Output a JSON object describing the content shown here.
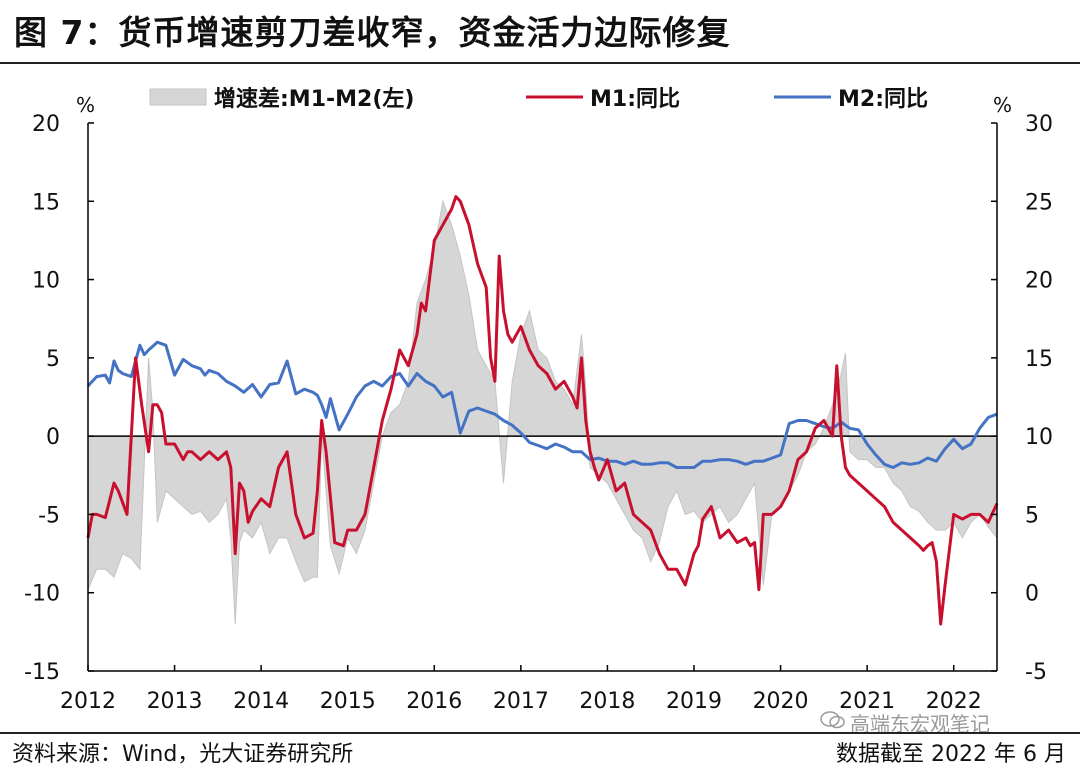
{
  "title": "图 7：货币增速剪刀差收窄，资金活力边际修复",
  "source": "资料来源：Wind，光大证券研究所",
  "note": "数据截至 2022 年 6 月",
  "watermark": "高端东宏观笔记",
  "colors": {
    "gap_fill": "#d6d6d6",
    "gap_stroke": "#c4c4c4",
    "m1": "#c8102e",
    "m2": "#4472c4",
    "axis": "#000000"
  },
  "chart_data": {
    "type": "line",
    "title": "货币增速剪刀差收窄，资金活力边际修复",
    "left_axis": {
      "unit": "%",
      "ylim": [
        -15,
        20
      ],
      "ticks": [
        20,
        15,
        10,
        5,
        0,
        -5,
        -10,
        -15
      ]
    },
    "right_axis": {
      "unit": "%",
      "ylim": [
        -5,
        30
      ],
      "ticks": [
        30,
        25,
        20,
        15,
        10,
        5,
        0,
        -5
      ]
    },
    "x_range": [
      2012.0,
      2022.5
    ],
    "x_ticks": [
      "2012",
      "2013",
      "2014",
      "2015",
      "2016",
      "2017",
      "2018",
      "2019",
      "2020",
      "2021",
      "2022"
    ],
    "legend": [
      "增速差:M1-M2(左)",
      "M1:同比",
      "M2:同比"
    ],
    "series": [
      {
        "name": "增速差:M1-M2(左)",
        "type": "area",
        "axis": "left",
        "x": [
          2012.0,
          2012.1,
          2012.2,
          2012.3,
          2012.4,
          2012.5,
          2012.6,
          2012.7,
          2012.75,
          2012.8,
          2012.9,
          2013.0,
          2013.1,
          2013.2,
          2013.3,
          2013.4,
          2013.5,
          2013.6,
          2013.65,
          2013.7,
          2013.75,
          2013.8,
          2013.9,
          2014.0,
          2014.1,
          2014.2,
          2014.3,
          2014.4,
          2014.5,
          2014.6,
          2014.65,
          2014.7,
          2014.8,
          2014.9,
          2015.0,
          2015.1,
          2015.2,
          2015.3,
          2015.4,
          2015.5,
          2015.6,
          2015.7,
          2015.8,
          2015.9,
          2016.0,
          2016.1,
          2016.2,
          2016.3,
          2016.4,
          2016.5,
          2016.6,
          2016.7,
          2016.8,
          2016.9,
          2017.0,
          2017.1,
          2017.2,
          2017.3,
          2017.4,
          2017.5,
          2017.6,
          2017.7,
          2017.75,
          2017.8,
          2017.9,
          2018.0,
          2018.1,
          2018.2,
          2018.3,
          2018.4,
          2018.5,
          2018.6,
          2018.7,
          2018.8,
          2018.9,
          2019.0,
          2019.1,
          2019.2,
          2019.3,
          2019.4,
          2019.5,
          2019.6,
          2019.7,
          2019.8,
          2019.9,
          2020.0,
          2020.1,
          2020.2,
          2020.3,
          2020.4,
          2020.5,
          2020.6,
          2020.7,
          2020.75,
          2020.8,
          2020.9,
          2021.0,
          2021.1,
          2021.2,
          2021.3,
          2021.4,
          2021.5,
          2021.6,
          2021.7,
          2021.8,
          2021.9,
          2022.0,
          2022.1,
          2022.2,
          2022.3,
          2022.4,
          2022.5
        ],
        "values": [
          -9.8,
          -8.5,
          -8.5,
          -9.0,
          -7.5,
          -7.8,
          -8.5,
          5.0,
          1.5,
          -5.5,
          -3.5,
          -4.0,
          -4.5,
          -5.0,
          -4.8,
          -5.5,
          -5.0,
          -4.0,
          -6.5,
          -12.0,
          -6.8,
          -6.0,
          -6.5,
          -5.5,
          -7.5,
          -6.5,
          -6.5,
          -8.0,
          -9.3,
          -9.0,
          -9.0,
          0.0,
          -7.0,
          -8.8,
          -6.5,
          -7.5,
          -6.0,
          -3.0,
          0.0,
          1.5,
          2.0,
          3.5,
          8.5,
          10.0,
          12.0,
          15.0,
          13.5,
          11.5,
          9.0,
          5.5,
          4.5,
          3.5,
          -3.0,
          3.5,
          6.5,
          8.0,
          5.5,
          5.0,
          3.5,
          3.0,
          2.0,
          6.5,
          3.0,
          -2.0,
          -2.5,
          -3.0,
          -4.0,
          -5.0,
          -6.0,
          -6.5,
          -8.0,
          -6.8,
          -4.5,
          -3.5,
          -5.0,
          -4.8,
          -5.5,
          -5.0,
          -4.5,
          -5.5,
          -5.0,
          -4.0,
          -3.0,
          -9.5,
          -5.0,
          -4.5,
          -3.5,
          -2.5,
          -1.0,
          -0.5,
          0.5,
          2.0,
          4.0,
          5.3,
          -1.0,
          -1.5,
          -1.5,
          -2.0,
          -2.0,
          -3.0,
          -3.5,
          -4.5,
          -4.8,
          -5.5,
          -6.0,
          -6.0,
          -5.5,
          -6.5,
          -5.5,
          -5.0,
          -5.8,
          -6.5
        ]
      },
      {
        "name": "M1:同比",
        "type": "line",
        "axis": "left",
        "x": [
          2012.0,
          2012.05,
          2012.1,
          2012.2,
          2012.3,
          2012.35,
          2012.45,
          2012.55,
          2012.62,
          2012.7,
          2012.75,
          2012.8,
          2012.85,
          2012.9,
          2013.0,
          2013.05,
          2013.1,
          2013.15,
          2013.2,
          2013.3,
          2013.4,
          2013.5,
          2013.6,
          2013.65,
          2013.7,
          2013.75,
          2013.8,
          2013.85,
          2013.9,
          2014.0,
          2014.1,
          2014.2,
          2014.3,
          2014.4,
          2014.5,
          2014.6,
          2014.65,
          2014.7,
          2014.75,
          2014.85,
          2014.95,
          2015.0,
          2015.1,
          2015.2,
          2015.3,
          2015.4,
          2015.5,
          2015.6,
          2015.7,
          2015.8,
          2015.85,
          2015.9,
          2016.0,
          2016.1,
          2016.2,
          2016.25,
          2016.3,
          2016.4,
          2016.5,
          2016.6,
          2016.65,
          2016.7,
          2016.75,
          2016.8,
          2016.85,
          2016.9,
          2017.0,
          2017.1,
          2017.2,
          2017.3,
          2017.4,
          2017.5,
          2017.6,
          2017.65,
          2017.7,
          2017.75,
          2017.8,
          2017.85,
          2017.9,
          2018.0,
          2018.1,
          2018.2,
          2018.3,
          2018.4,
          2018.5,
          2018.6,
          2018.7,
          2018.8,
          2018.9,
          2019.0,
          2019.05,
          2019.1,
          2019.2,
          2019.3,
          2019.4,
          2019.5,
          2019.6,
          2019.65,
          2019.7,
          2019.75,
          2019.8,
          2019.9,
          2020.0,
          2020.05,
          2020.1,
          2020.2,
          2020.3,
          2020.4,
          2020.5,
          2020.6,
          2020.65,
          2020.7,
          2020.75,
          2020.8,
          2020.9,
          2021.0,
          2021.1,
          2021.2,
          2021.3,
          2021.4,
          2021.5,
          2021.6,
          2021.65,
          2021.7,
          2021.75,
          2021.8,
          2021.85,
          2021.9,
          2022.0,
          2022.1,
          2022.2,
          2022.3,
          2022.4,
          2022.5
        ],
        "values": [
          -6.5,
          -5.0,
          -5.0,
          -5.2,
          -3.0,
          -3.5,
          -5.0,
          5.0,
          2.0,
          -1.0,
          2.0,
          2.0,
          1.5,
          -0.5,
          -0.5,
          -1.0,
          -1.5,
          -1.0,
          -1.0,
          -1.5,
          -1.0,
          -1.5,
          -1.0,
          -2.0,
          -7.5,
          -3.0,
          -3.5,
          -5.5,
          -4.8,
          -4.0,
          -4.5,
          -2.0,
          -1.0,
          -5.0,
          -6.5,
          -6.2,
          -3.5,
          1.0,
          -1.0,
          -6.8,
          -7.0,
          -6.0,
          -6.0,
          -5.0,
          -2.0,
          1.0,
          3.0,
          5.5,
          4.5,
          6.5,
          8.5,
          8.0,
          12.5,
          13.5,
          14.5,
          15.3,
          15.0,
          13.5,
          11.0,
          9.5,
          5.0,
          3.5,
          11.5,
          8.0,
          6.5,
          6.0,
          7.0,
          5.5,
          4.5,
          4.0,
          3.0,
          3.5,
          2.5,
          1.8,
          5.0,
          1.0,
          -1.0,
          -2.0,
          -2.8,
          -1.5,
          -3.5,
          -3.0,
          -5.0,
          -5.5,
          -6.0,
          -7.5,
          -8.5,
          -8.5,
          -9.5,
          -7.5,
          -7.0,
          -5.3,
          -4.5,
          -6.5,
          -6.0,
          -6.8,
          -6.5,
          -7.0,
          -6.8,
          -9.8,
          -5.0,
          -5.0,
          -4.5,
          -4.0,
          -3.5,
          -1.5,
          -1.0,
          0.5,
          1.0,
          0.0,
          4.5,
          0.0,
          -2.0,
          -2.5,
          -3.0,
          -3.5,
          -4.0,
          -4.5,
          -5.5,
          -6.0,
          -6.5,
          -7.0,
          -7.3,
          -7.0,
          -6.8,
          -8.0,
          -12.0,
          -9.5,
          -5.0,
          -5.3,
          -5.0,
          -5.0,
          -5.5,
          -4.3
        ]
      },
      {
        "name": "M2:同比",
        "type": "line",
        "axis": "right",
        "x": [
          2012.0,
          2012.1,
          2012.2,
          2012.25,
          2012.3,
          2012.35,
          2012.4,
          2012.5,
          2012.6,
          2012.65,
          2012.7,
          2012.8,
          2012.9,
          2013.0,
          2013.1,
          2013.2,
          2013.3,
          2013.35,
          2013.4,
          2013.5,
          2013.6,
          2013.7,
          2013.8,
          2013.9,
          2014.0,
          2014.1,
          2014.2,
          2014.3,
          2014.4,
          2014.5,
          2014.6,
          2014.65,
          2014.7,
          2014.75,
          2014.8,
          2014.9,
          2015.0,
          2015.1,
          2015.2,
          2015.3,
          2015.4,
          2015.5,
          2015.6,
          2015.7,
          2015.8,
          2015.9,
          2016.0,
          2016.1,
          2016.2,
          2016.3,
          2016.4,
          2016.5,
          2016.6,
          2016.7,
          2016.8,
          2016.9,
          2017.0,
          2017.1,
          2017.2,
          2017.3,
          2017.4,
          2017.5,
          2017.6,
          2017.7,
          2017.8,
          2017.9,
          2018.0,
          2018.1,
          2018.2,
          2018.3,
          2018.4,
          2018.5,
          2018.6,
          2018.7,
          2018.8,
          2018.9,
          2019.0,
          2019.1,
          2019.2,
          2019.3,
          2019.4,
          2019.5,
          2019.6,
          2019.7,
          2019.8,
          2019.9,
          2020.0,
          2020.1,
          2020.2,
          2020.3,
          2020.4,
          2020.5,
          2020.6,
          2020.7,
          2020.8,
          2020.9,
          2021.0,
          2021.1,
          2021.2,
          2021.3,
          2021.4,
          2021.5,
          2021.6,
          2021.7,
          2021.8,
          2021.9,
          2022.0,
          2022.1,
          2022.2,
          2022.3,
          2022.4,
          2022.5
        ],
        "values": [
          13.2,
          13.8,
          13.9,
          13.4,
          14.8,
          14.2,
          14.0,
          13.8,
          15.8,
          15.2,
          15.5,
          16.0,
          15.8,
          13.9,
          14.9,
          14.5,
          14.3,
          13.9,
          14.2,
          14.0,
          13.5,
          13.2,
          12.8,
          13.3,
          12.5,
          13.3,
          13.4,
          14.8,
          12.7,
          13.0,
          12.8,
          12.6,
          12.0,
          11.2,
          12.4,
          10.4,
          11.4,
          12.5,
          13.2,
          13.5,
          13.2,
          13.8,
          14.0,
          13.2,
          14.0,
          13.5,
          13.2,
          12.5,
          12.8,
          10.2,
          11.6,
          11.8,
          11.6,
          11.4,
          11.0,
          10.7,
          10.2,
          9.6,
          9.4,
          9.2,
          9.5,
          9.3,
          9.0,
          9.0,
          8.5,
          8.6,
          8.4,
          8.4,
          8.2,
          8.4,
          8.2,
          8.2,
          8.3,
          8.3,
          8.0,
          8.0,
          8.0,
          8.4,
          8.4,
          8.5,
          8.5,
          8.4,
          8.2,
          8.4,
          8.4,
          8.6,
          8.8,
          10.8,
          11.0,
          11.0,
          10.8,
          10.6,
          10.5,
          10.9,
          10.5,
          10.4,
          9.5,
          8.8,
          8.2,
          8.0,
          8.3,
          8.2,
          8.3,
          8.6,
          8.4,
          9.2,
          9.8,
          9.2,
          9.5,
          10.5,
          11.2,
          11.4
        ]
      }
    ]
  }
}
